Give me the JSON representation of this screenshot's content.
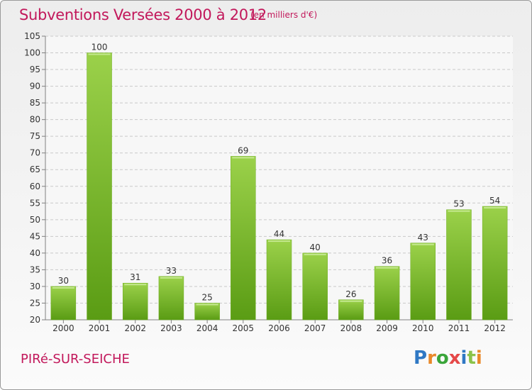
{
  "header": {
    "title": "Subventions Versées 2000 à 2012",
    "subtitle": "(en milliers d'€)"
  },
  "footer": {
    "commune": "PIRé-SUR-SEICHE",
    "logo_text": "Proxiti"
  },
  "colors": {
    "title": "#c2185b",
    "bar_light": "#9bd14a",
    "bar_dark": "#5a9c14",
    "grid": "#c9c9c9",
    "axis": "#808080"
  },
  "chart_data": {
    "type": "bar",
    "categories": [
      "2000",
      "2001",
      "2002",
      "2003",
      "2004",
      "2005",
      "2006",
      "2007",
      "2008",
      "2009",
      "2010",
      "2011",
      "2012"
    ],
    "values": [
      30,
      100,
      31,
      33,
      25,
      69,
      44,
      40,
      26,
      36,
      43,
      53,
      54
    ],
    "title": "Subventions Versées 2000 à 2012",
    "subtitle": "(en milliers d'€)",
    "ylim": [
      20,
      105
    ],
    "yticks": [
      20,
      25,
      30,
      35,
      40,
      45,
      50,
      55,
      60,
      65,
      70,
      75,
      80,
      85,
      90,
      95,
      100,
      105
    ],
    "grid": true,
    "data_labels": true
  }
}
